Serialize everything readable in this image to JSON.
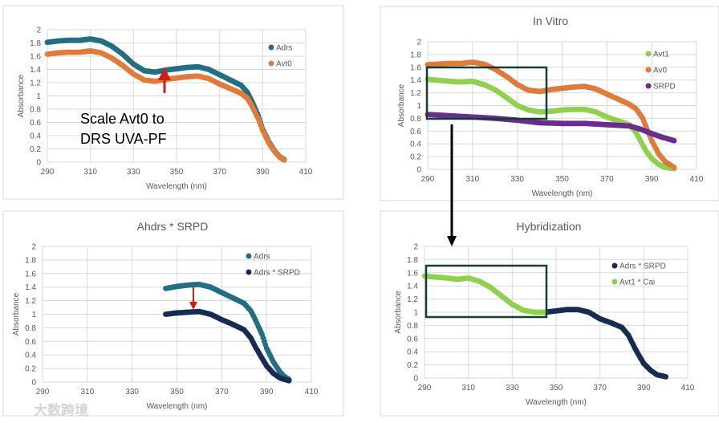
{
  "chart_data": [
    {
      "type": "scatter",
      "title": "",
      "xlabel": "Wavelength (nm)",
      "ylabel": "Absorbance",
      "xlim": [
        290,
        410
      ],
      "ylim": [
        0,
        2
      ],
      "xticks": [
        290,
        310,
        330,
        350,
        370,
        390,
        410
      ],
      "yticks": [
        0,
        0.2,
        0.4,
        0.6,
        0.8,
        1,
        1.2,
        1.4,
        1.6,
        1.8,
        2
      ],
      "grid": true,
      "legend": "top-right",
      "annotation": [
        "Scale Avt0 to",
        "DRS UVA-PF"
      ],
      "series": [
        {
          "name": "Adrs",
          "color": "#236e83",
          "points": [
            [
              290,
              1.81
            ],
            [
              295,
              1.83
            ],
            [
              300,
              1.84
            ],
            [
              305,
              1.84
            ],
            [
              310,
              1.86
            ],
            [
              315,
              1.83
            ],
            [
              320,
              1.75
            ],
            [
              325,
              1.63
            ],
            [
              330,
              1.48
            ],
            [
              335,
              1.38
            ],
            [
              340,
              1.36
            ],
            [
              345,
              1.39
            ],
            [
              350,
              1.41
            ],
            [
              355,
              1.43
            ],
            [
              360,
              1.44
            ],
            [
              365,
              1.4
            ],
            [
              370,
              1.32
            ],
            [
              375,
              1.24
            ],
            [
              380,
              1.16
            ],
            [
              383,
              1.05
            ],
            [
              385,
              0.92
            ],
            [
              388,
              0.7
            ],
            [
              390,
              0.5
            ],
            [
              393,
              0.3
            ],
            [
              396,
              0.15
            ],
            [
              398,
              0.08
            ],
            [
              400,
              0.04
            ]
          ]
        },
        {
          "name": "Avt0",
          "color": "#e07b3c",
          "points": [
            [
              290,
              1.63
            ],
            [
              295,
              1.65
            ],
            [
              300,
              1.66
            ],
            [
              305,
              1.66
            ],
            [
              310,
              1.68
            ],
            [
              315,
              1.65
            ],
            [
              320,
              1.57
            ],
            [
              325,
              1.46
            ],
            [
              330,
              1.33
            ],
            [
              335,
              1.24
            ],
            [
              340,
              1.22
            ],
            [
              345,
              1.25
            ],
            [
              350,
              1.27
            ],
            [
              355,
              1.29
            ],
            [
              360,
              1.3
            ],
            [
              365,
              1.26
            ],
            [
              370,
              1.18
            ],
            [
              375,
              1.11
            ],
            [
              380,
              1.04
            ],
            [
              383,
              0.96
            ],
            [
              385,
              0.85
            ],
            [
              388,
              0.65
            ],
            [
              390,
              0.48
            ],
            [
              393,
              0.28
            ],
            [
              396,
              0.14
            ],
            [
              398,
              0.07
            ],
            [
              400,
              0.03
            ]
          ]
        }
      ]
    },
    {
      "type": "scatter",
      "title": "In Vitro",
      "xlabel": "Wavelength (nm)",
      "ylabel": "Absorbance",
      "xlim": [
        290,
        410
      ],
      "ylim": [
        0,
        2
      ],
      "xticks": [
        290,
        310,
        330,
        350,
        370,
        390,
        410
      ],
      "yticks": [
        0,
        0.2,
        0.4,
        0.6,
        0.8,
        1,
        1.2,
        1.4,
        1.6,
        1.8,
        2
      ],
      "grid": true,
      "legend": "top-right",
      "series": [
        {
          "name": "Avt1",
          "color": "#8fd14f",
          "points": [
            [
              290,
              1.41
            ],
            [
              300,
              1.38
            ],
            [
              305,
              1.37
            ],
            [
              310,
              1.38
            ],
            [
              315,
              1.33
            ],
            [
              320,
              1.25
            ],
            [
              325,
              1.13
            ],
            [
              330,
              1.0
            ],
            [
              335,
              0.93
            ],
            [
              340,
              0.9
            ],
            [
              345,
              0.91
            ],
            [
              350,
              0.93
            ],
            [
              355,
              0.94
            ],
            [
              360,
              0.94
            ],
            [
              365,
              0.9
            ],
            [
              370,
              0.82
            ],
            [
              375,
              0.76
            ],
            [
              380,
              0.7
            ],
            [
              383,
              0.58
            ],
            [
              386,
              0.38
            ],
            [
              388,
              0.26
            ],
            [
              390,
              0.17
            ],
            [
              393,
              0.08
            ],
            [
              396,
              0.03
            ],
            [
              400,
              0.01
            ]
          ]
        },
        {
          "name": "Av0",
          "color": "#e07b3c",
          "points": [
            [
              290,
              1.64
            ],
            [
              295,
              1.65
            ],
            [
              300,
              1.66
            ],
            [
              305,
              1.66
            ],
            [
              310,
              1.68
            ],
            [
              315,
              1.65
            ],
            [
              320,
              1.57
            ],
            [
              325,
              1.46
            ],
            [
              330,
              1.33
            ],
            [
              335,
              1.24
            ],
            [
              340,
              1.22
            ],
            [
              345,
              1.25
            ],
            [
              350,
              1.27
            ],
            [
              355,
              1.29
            ],
            [
              360,
              1.3
            ],
            [
              365,
              1.26
            ],
            [
              370,
              1.18
            ],
            [
              375,
              1.1
            ],
            [
              380,
              1.02
            ],
            [
              383,
              0.95
            ],
            [
              386,
              0.8
            ],
            [
              388,
              0.62
            ],
            [
              390,
              0.45
            ],
            [
              393,
              0.25
            ],
            [
              396,
              0.12
            ],
            [
              400,
              0.03
            ]
          ]
        },
        {
          "name": "SRPD",
          "color": "#6a2c8e",
          "points": [
            [
              290,
              0.86
            ],
            [
              300,
              0.84
            ],
            [
              310,
              0.82
            ],
            [
              320,
              0.8
            ],
            [
              330,
              0.77
            ],
            [
              340,
              0.73
            ],
            [
              350,
              0.72
            ],
            [
              360,
              0.72
            ],
            [
              370,
              0.7
            ],
            [
              380,
              0.68
            ],
            [
              385,
              0.63
            ],
            [
              390,
              0.56
            ],
            [
              395,
              0.5
            ],
            [
              400,
              0.45
            ]
          ]
        }
      ]
    },
    {
      "type": "scatter",
      "title": "Ahdrs * SRPD",
      "xlabel": "Wavelength (nm)",
      "ylabel": "Absorbance",
      "xlim": [
        290,
        410
      ],
      "ylim": [
        0,
        2
      ],
      "xticks": [
        290,
        310,
        330,
        350,
        370,
        390,
        410
      ],
      "yticks": [
        0,
        0.2,
        0.4,
        0.6,
        0.8,
        1,
        1.2,
        1.4,
        1.6,
        1.8,
        2
      ],
      "grid": true,
      "legend": "top-right",
      "series": [
        {
          "name": "Adrs",
          "color": "#236e83",
          "points": [
            [
              345,
              1.38
            ],
            [
              350,
              1.41
            ],
            [
              355,
              1.43
            ],
            [
              360,
              1.44
            ],
            [
              365,
              1.4
            ],
            [
              370,
              1.32
            ],
            [
              375,
              1.24
            ],
            [
              380,
              1.16
            ],
            [
              383,
              1.05
            ],
            [
              385,
              0.92
            ],
            [
              388,
              0.7
            ],
            [
              390,
              0.5
            ],
            [
              393,
              0.3
            ],
            [
              396,
              0.15
            ],
            [
              398,
              0.08
            ],
            [
              400,
              0.04
            ]
          ]
        },
        {
          "name": "Adrs * SRPD",
          "color": "#172b55",
          "points": [
            [
              345,
              1.0
            ],
            [
              350,
              1.02
            ],
            [
              355,
              1.03
            ],
            [
              360,
              1.04
            ],
            [
              365,
              1.0
            ],
            [
              370,
              0.92
            ],
            [
              375,
              0.85
            ],
            [
              380,
              0.77
            ],
            [
              383,
              0.65
            ],
            [
              385,
              0.52
            ],
            [
              388,
              0.35
            ],
            [
              390,
              0.24
            ],
            [
              393,
              0.13
            ],
            [
              396,
              0.06
            ],
            [
              400,
              0.02
            ]
          ]
        }
      ]
    },
    {
      "type": "scatter",
      "title": "Hybridization",
      "xlabel": "Wavelength (nm)",
      "ylabel": "Absorbance",
      "xlim": [
        290,
        410
      ],
      "ylim": [
        0,
        2
      ],
      "xticks": [
        290,
        310,
        330,
        350,
        370,
        390,
        410
      ],
      "yticks": [
        0,
        0.2,
        0.4,
        0.6,
        0.8,
        1,
        1.2,
        1.4,
        1.6,
        1.8,
        2
      ],
      "grid": true,
      "legend": "top-right",
      "series": [
        {
          "name": "Adrs * SRPD",
          "color": "#172b55",
          "points": [
            [
              345,
              1.0
            ],
            [
              350,
              1.02
            ],
            [
              355,
              1.04
            ],
            [
              360,
              1.04
            ],
            [
              365,
              1.0
            ],
            [
              370,
              0.9
            ],
            [
              375,
              0.84
            ],
            [
              380,
              0.77
            ],
            [
              383,
              0.65
            ],
            [
              386,
              0.45
            ],
            [
              388,
              0.33
            ],
            [
              390,
              0.22
            ],
            [
              393,
              0.12
            ],
            [
              396,
              0.05
            ],
            [
              400,
              0.02
            ]
          ]
        },
        {
          "name": "Avt1 * Cai",
          "color": "#8fd14f",
          "points": [
            [
              290,
              1.55
            ],
            [
              300,
              1.52
            ],
            [
              305,
              1.5
            ],
            [
              310,
              1.52
            ],
            [
              315,
              1.47
            ],
            [
              320,
              1.38
            ],
            [
              325,
              1.25
            ],
            [
              330,
              1.12
            ],
            [
              335,
              1.03
            ],
            [
              340,
              1.0
            ],
            [
              345,
              1.0
            ]
          ]
        }
      ]
    }
  ],
  "watermark": "大数跨境"
}
